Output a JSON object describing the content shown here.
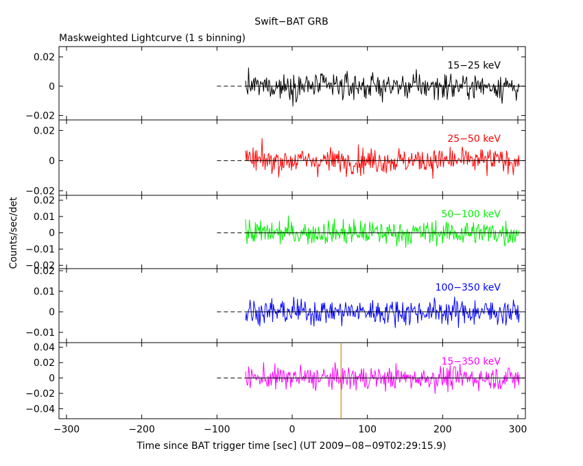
{
  "title": "Swift−BAT GRB",
  "subtitle": "Maskweighted Lightcurve (1 s binning)",
  "ylabel": "Counts/sec/det",
  "xlabel": "Time since BAT trigger time [sec] (UT 2009−08−09T02:29:15.9)",
  "chart_data": {
    "type": "line",
    "title": "Swift−BAT GRB",
    "subtitle": "Maskweighted Lightcurve (1 s binning)",
    "xlabel": "Time since BAT trigger time [sec] (UT 2009−08−09T02:29:15.9)",
    "ylabel": "Counts/sec/det",
    "xlim": [
      -310,
      310
    ],
    "x_ticks": [
      -300,
      -200,
      -100,
      0,
      100,
      200,
      300
    ],
    "x_tick_labels": [
      "−300",
      "−200",
      "−100",
      "0",
      "100",
      "200",
      "300"
    ],
    "data_range": [
      -62,
      302
    ],
    "pre_trigger_dashed": [
      -100,
      -62
    ],
    "trigger_marker_x": 65,
    "trigger_marker_color": "#cc8800",
    "grid": false,
    "panels": [
      {
        "name": "15−25 keV",
        "color": "#000000",
        "ylim": [
          -0.023,
          0.027
        ],
        "y_ticks": [
          -0.02,
          0,
          0.02
        ],
        "y_tick_labels": [
          "−0.02",
          "0",
          "0.02"
        ],
        "noise_sigma": 0.0075,
        "peak": 0.024,
        "trough": -0.02
      },
      {
        "name": "25−50 keV",
        "color": "#ff0000",
        "ylim": [
          -0.023,
          0.027
        ],
        "y_ticks": [
          -0.02,
          0,
          0.02
        ],
        "y_tick_labels": [
          "−0.02",
          "0",
          "0.02"
        ],
        "noise_sigma": 0.0072,
        "peak": 0.025,
        "trough": -0.021
      },
      {
        "name": "50−100 keV",
        "color": "#00ee00",
        "ylim": [
          -0.022,
          0.023
        ],
        "y_ticks": [
          -0.02,
          -0.01,
          0,
          0.01,
          0.02
        ],
        "y_tick_labels": [
          "−0.02",
          "−0.01",
          "0",
          "0.01",
          "0.02"
        ],
        "noise_sigma": 0.0065,
        "peak": 0.018,
        "trough": -0.02
      },
      {
        "name": "100−350 keV",
        "color": "#0000ff",
        "ylim": [
          -0.015,
          0.021
        ],
        "y_ticks": [
          -0.01,
          0,
          0.01,
          0.02
        ],
        "y_tick_labels": [
          "−0.01",
          "0",
          "0.01",
          "0.02"
        ],
        "noise_sigma": 0.0052,
        "peak": 0.016,
        "trough": -0.015
      },
      {
        "name": "15−350 keV",
        "color": "#ff00ff",
        "ylim": [
          -0.053,
          0.046
        ],
        "y_ticks": [
          -0.04,
          -0.02,
          0,
          0.02,
          0.04
        ],
        "y_tick_labels": [
          "−0.04",
          "−0.02",
          "0",
          "0.02",
          "0.04"
        ],
        "noise_sigma": 0.013,
        "peak": 0.04,
        "trough": -0.053
      }
    ]
  }
}
